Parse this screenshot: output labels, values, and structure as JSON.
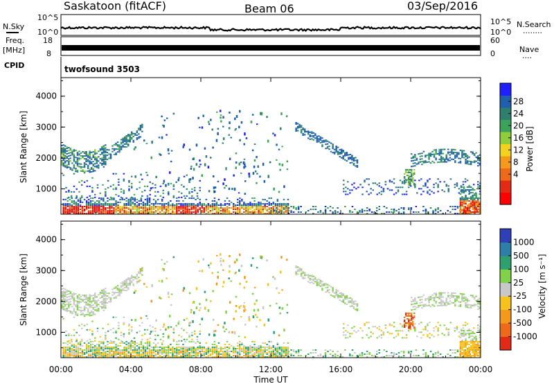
{
  "header": {
    "title_left": "Saskatoon (fitACF)",
    "title_center": "Beam 06",
    "title_right": "03/Sep/2016"
  },
  "top_panels": {
    "nsky": {
      "label": "N.Sky",
      "left_ticks": [
        "10^5",
        "10^0"
      ],
      "right_ticks": [
        "10^5",
        "10^0"
      ],
      "right_label": "N.Search",
      "right_dots": "........"
    },
    "freq": {
      "label_line1": "Freq.",
      "label_line2": "[MHz]",
      "left_ticks": [
        "18",
        "8"
      ],
      "right_ticks": [
        "60",
        "0"
      ],
      "right_label": "Nave",
      "right_dots": "...."
    },
    "cpid": {
      "label": "CPID",
      "value": "twofsound 3503"
    }
  },
  "chart_data": [
    {
      "type": "heatmap",
      "panel": "power",
      "xlabel": "",
      "ylabel": "Slant Range [km]",
      "x_range_hours": [
        0,
        24
      ],
      "ylim": [
        180,
        4600
      ],
      "yticks": [
        "4000",
        "3000",
        "2000",
        "1000"
      ],
      "colorbar": {
        "label": "Power [dB]",
        "ticks": [
          "28",
          "24",
          "20",
          "16",
          "12",
          "8",
          "4"
        ],
        "colors": [
          "#1f1fff",
          "#1f5fae",
          "#2e7f6e",
          "#3aa35a",
          "#8fce3a",
          "#f2d21d",
          "#f39a1b",
          "#ef6a18",
          "#e32a14",
          "#ff0000"
        ]
      }
    },
    {
      "type": "heatmap",
      "panel": "velocity",
      "xlabel": "Time UT",
      "ylabel": "Slant Range [km]",
      "x_range_hours": [
        0,
        24
      ],
      "ylim": [
        180,
        4600
      ],
      "xticks": [
        "00:00",
        "04:00",
        "08:00",
        "12:00",
        "16:00",
        "20:00",
        "00:00"
      ],
      "yticks": [
        "4000",
        "3000",
        "2000",
        "1000"
      ],
      "colorbar": {
        "label": "Velocity [m s⁻¹]",
        "ticks": [
          "1000",
          "500",
          "100",
          "25",
          "-25",
          "-100",
          "-500",
          "-1000"
        ],
        "colors": [
          "#2e3fb8",
          "#2e7fa8",
          "#2ea070",
          "#7fd24a",
          "#c8c8c8",
          "#f6c21c",
          "#f39a1b",
          "#ef6a18",
          "#e32a14"
        ]
      }
    }
  ]
}
